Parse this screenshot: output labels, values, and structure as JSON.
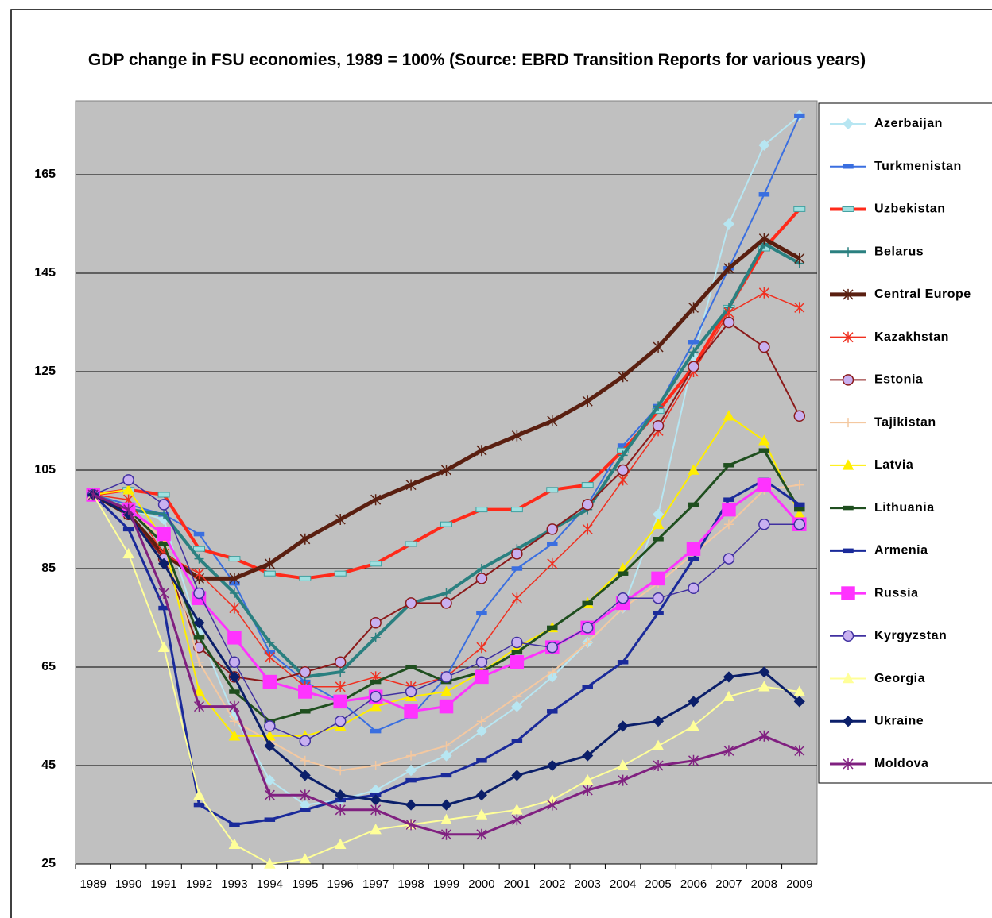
{
  "chart_data": {
    "type": "line",
    "title": "GDP change in FSU economies, 1989 = 100% (Source: EBRD Transition Reports for various years)",
    "categories": [
      "1989",
      "1990",
      "1991",
      "1992",
      "1993",
      "1994",
      "1995",
      "1996",
      "1997",
      "1998",
      "1999",
      "2000",
      "2001",
      "2002",
      "2003",
      "2004",
      "2005",
      "2006",
      "2007",
      "2008",
      "2009"
    ],
    "ylim": [
      25,
      180
    ],
    "yticks": [
      25,
      45,
      65,
      85,
      105,
      125,
      145,
      165
    ],
    "grid": true,
    "legend": "right",
    "series": [
      {
        "name": "Azerbaijan",
        "color": "#b7e6f2",
        "marker": "diamond",
        "line_width": 2,
        "values": [
          100,
          97,
          95,
          72,
          55,
          42,
          37,
          38,
          40,
          44,
          47,
          52,
          57,
          63,
          70,
          77,
          96,
          128,
          155,
          171,
          177
        ]
      },
      {
        "name": "Turkmenistan",
        "color": "#3a6fe0",
        "marker": "dash",
        "line_width": 2,
        "values": [
          100,
          98,
          96,
          92,
          82,
          68,
          62,
          58,
          52,
          55,
          63,
          76,
          85,
          90,
          98,
          110,
          118,
          131,
          146,
          161,
          177
        ]
      },
      {
        "name": "Uzbekistan",
        "color": "#ff2a1a",
        "marker": "box",
        "line_width": 4,
        "values": [
          100,
          101,
          100,
          89,
          87,
          84,
          83,
          84,
          86,
          90,
          94,
          97,
          97,
          101,
          102,
          109,
          117,
          126,
          138,
          150,
          158
        ]
      },
      {
        "name": "Belarus",
        "color": "#2a8080",
        "marker": "plus",
        "line_width": 4,
        "values": [
          100,
          97,
          96,
          87,
          80,
          70,
          63,
          64,
          71,
          78,
          80,
          85,
          89,
          93,
          97,
          108,
          118,
          129,
          138,
          151,
          147
        ]
      },
      {
        "name": "Central Europe",
        "color": "#5a1f10",
        "marker": "star",
        "line_width": 5,
        "values": [
          100,
          96,
          88,
          83,
          83,
          86,
          91,
          95,
          99,
          102,
          105,
          109,
          112,
          115,
          119,
          124,
          130,
          138,
          146,
          152,
          148
        ]
      },
      {
        "name": "Kazakhstan",
        "color": "#f03020",
        "marker": "star",
        "line_width": 1.5,
        "values": [
          100,
          99,
          88,
          84,
          77,
          67,
          61,
          61,
          63,
          61,
          63,
          69,
          79,
          86,
          93,
          103,
          113,
          125,
          137,
          141,
          138
        ]
      },
      {
        "name": "Estonia",
        "color": "#8b1a1a",
        "marker": "circle",
        "line_width": 2,
        "values": [
          100,
          96,
          87,
          69,
          63,
          62,
          64,
          66,
          74,
          78,
          78,
          83,
          88,
          93,
          98,
          105,
          114,
          126,
          135,
          130,
          116
        ]
      },
      {
        "name": "Tajikistan",
        "color": "#f4c8a0",
        "marker": "plus",
        "line_width": 2,
        "values": [
          100,
          97,
          91,
          66,
          54,
          50,
          46,
          44,
          45,
          47,
          49,
          54,
          59,
          64,
          70,
          77,
          82,
          88,
          94,
          101,
          102
        ]
      },
      {
        "name": "Latvia",
        "color": "#ffee00",
        "marker": "triangle",
        "line_width": 2,
        "values": [
          100,
          101,
          91,
          60,
          51,
          51,
          51,
          53,
          57,
          59,
          60,
          64,
          69,
          73,
          78,
          85,
          94,
          105,
          116,
          111,
          96
        ]
      },
      {
        "name": "Lithuania",
        "color": "#1f4f1f",
        "marker": "dash",
        "line_width": 3,
        "values": [
          100,
          97,
          90,
          71,
          60,
          54,
          56,
          58,
          62,
          65,
          62,
          64,
          68,
          73,
          78,
          84,
          91,
          98,
          106,
          109,
          97
        ]
      },
      {
        "name": "Armenia",
        "color": "#1a2a9a",
        "marker": "dash",
        "line_width": 3,
        "values": [
          100,
          93,
          77,
          37,
          33,
          34,
          36,
          38,
          39,
          42,
          43,
          46,
          50,
          56,
          61,
          66,
          76,
          87,
          99,
          103,
          98
        ]
      },
      {
        "name": "Russia",
        "color": "#ff33ff",
        "marker": "square",
        "line_width": 3,
        "values": [
          100,
          97,
          92,
          79,
          71,
          62,
          60,
          58,
          59,
          56,
          57,
          63,
          66,
          69,
          73,
          78,
          83,
          89,
          97,
          102,
          94
        ]
      },
      {
        "name": "Kyrgyzstan",
        "color": "#4030a0",
        "marker": "circle",
        "line_width": 1.5,
        "values": [
          100,
          103,
          98,
          80,
          66,
          53,
          50,
          54,
          59,
          60,
          63,
          66,
          70,
          69,
          73,
          79,
          79,
          81,
          87,
          94,
          94
        ]
      },
      {
        "name": "Georgia",
        "color": "#ffff99",
        "marker": "triangle",
        "line_width": 2,
        "values": [
          100,
          88,
          69,
          39,
          29,
          25,
          26,
          29,
          32,
          33,
          34,
          35,
          36,
          38,
          42,
          45,
          49,
          53,
          59,
          61,
          60
        ]
      },
      {
        "name": "Ukraine",
        "color": "#0b1f6a",
        "marker": "diamond",
        "line_width": 3,
        "values": [
          100,
          96,
          86,
          74,
          63,
          49,
          43,
          39,
          38,
          37,
          37,
          39,
          43,
          45,
          47,
          53,
          54,
          58,
          63,
          64,
          58
        ]
      },
      {
        "name": "Moldova",
        "color": "#802080",
        "marker": "star",
        "line_width": 3,
        "values": [
          100,
          97,
          80,
          57,
          57,
          39,
          39,
          36,
          36,
          33,
          31,
          31,
          34,
          37,
          40,
          42,
          45,
          46,
          48,
          51,
          48
        ]
      }
    ]
  }
}
